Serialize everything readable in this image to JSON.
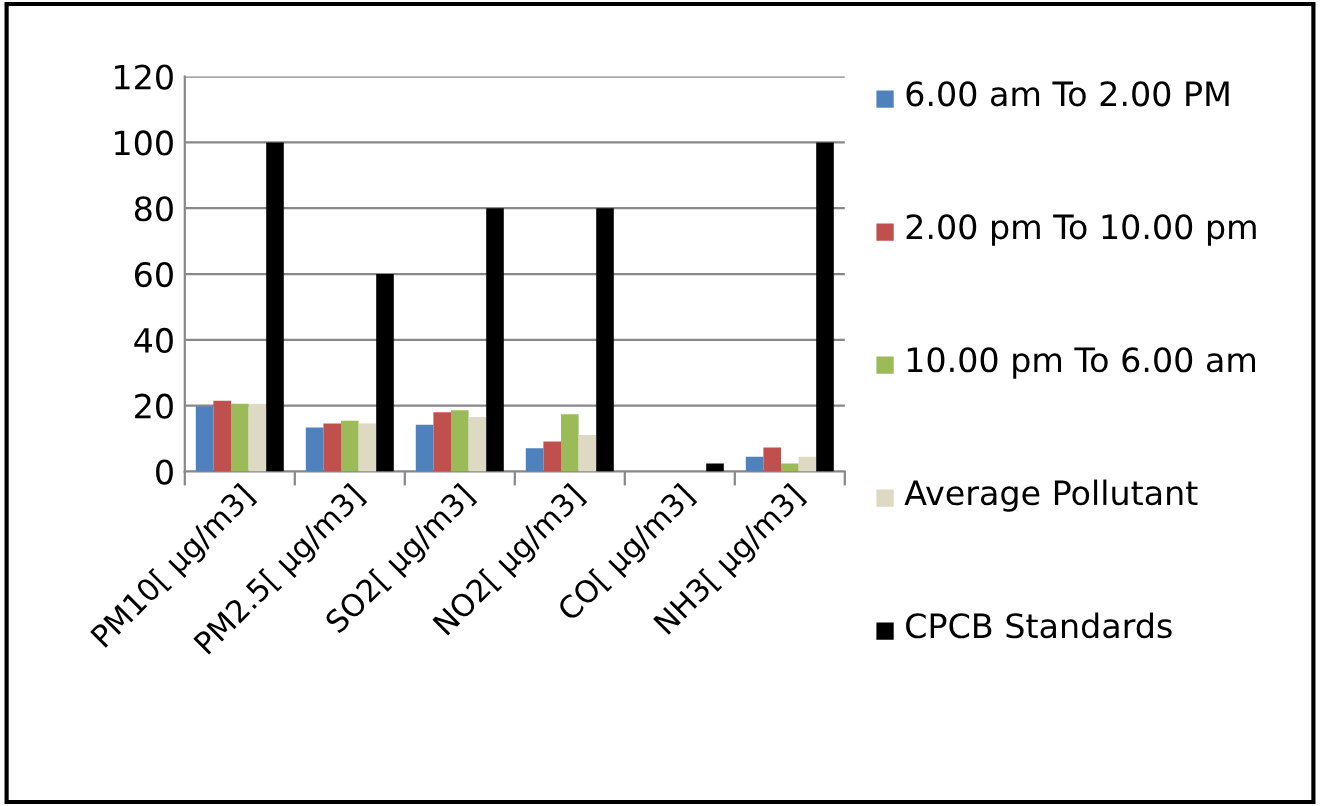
{
  "chart_data": {
    "type": "bar",
    "categories": [
      "PM10[ µg/m3]",
      "PM2.5[ µg/m3]",
      "SO2[ µg/m3]",
      "NO2[ µg/m3]",
      "CO[ µg/m3]",
      "NH3[ µg/m3]"
    ],
    "series": [
      {
        "name": "6.00 am To 2.00 PM",
        "color": "#4f81bd",
        "values": [
          19.8,
          13.4,
          14.2,
          7.1,
          0,
          4.5
        ]
      },
      {
        "name": "2.00 pm To 10.00 pm",
        "color": "#c0504d",
        "values": [
          21.5,
          14.6,
          18,
          9.1,
          0,
          7.3
        ]
      },
      {
        "name": "10.00 pm To 6.00 am",
        "color": "#9bbb59",
        "values": [
          20.6,
          15.4,
          18.6,
          17.4,
          0,
          2.4
        ]
      },
      {
        "name": "Average Pollutant",
        "color": "#ddd9c3",
        "values": [
          20.6,
          14.6,
          16.6,
          11.1,
          0,
          4.5
        ]
      },
      {
        "name": "CPCB Standards",
        "color": "#000000",
        "values": [
          100,
          60,
          80,
          80,
          2.4,
          100
        ]
      }
    ],
    "ylim": [
      0,
      120
    ],
    "yticks": [
      0,
      20,
      40,
      60,
      80,
      100,
      120
    ],
    "grid": "y",
    "legend": "right"
  }
}
